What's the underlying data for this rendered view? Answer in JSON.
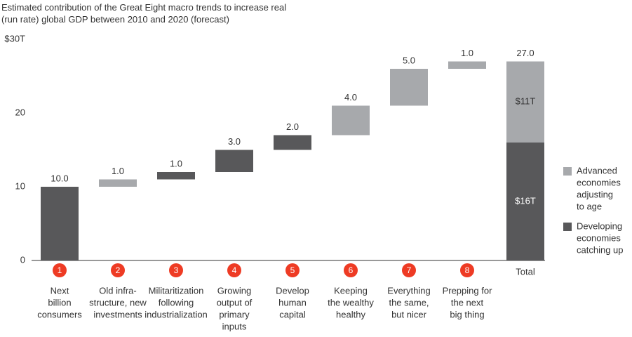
{
  "chart_data": {
    "type": "waterfall",
    "title": "Estimated contribution of the Great Eight macro trends to increase real (run rate) global GDP between 2010 and 2020 (forecast)",
    "markers": [
      "1",
      "2",
      "3",
      "4",
      "5",
      "6",
      "7",
      "8"
    ],
    "marker_color": "#ee3b24",
    "categories": [
      [
        "Next",
        "billion",
        "consumers"
      ],
      [
        "Old infra-",
        "structure, new",
        "investments"
      ],
      [
        "Militaritization",
        "following",
        "industrialization"
      ],
      [
        "Growing",
        "output of",
        "primary",
        "inputs"
      ],
      [
        "Develop",
        "human",
        "capital"
      ],
      [
        "Keeping",
        "the wealthy",
        "healthy"
      ],
      [
        "Everything",
        "the same,",
        "but nicer"
      ],
      [
        "Prepping for",
        "the next",
        "big thing"
      ],
      [
        "Total"
      ]
    ],
    "values": [
      10,
      1,
      1,
      3,
      2,
      4,
      5,
      1,
      27
    ],
    "value_labels": [
      "10.0",
      "1.0",
      "1.0",
      "3.0",
      "2.0",
      "4.0",
      "5.0",
      "1.0",
      "27.0"
    ],
    "colors": [
      "#58585a",
      "#a7a9ac",
      "#58585a",
      "#58585a",
      "#58585a",
      "#a7a9ac",
      "#a7a9ac",
      "#a7a9ac"
    ],
    "total_segments": {
      "values": [
        16,
        11
      ],
      "value_labels": [
        "$16T",
        "$11T"
      ]
    },
    "series": [
      {
        "name": [
          "Developing",
          "economies",
          "catching up"
        ],
        "color": "#58585a"
      },
      {
        "name": [
          "Advanced",
          "economies",
          "adjusting",
          "to age"
        ],
        "color": "#a7a9ac"
      }
    ],
    "ylim": [
      0,
      30
    ],
    "yticks": [
      0,
      10,
      20,
      {
        "value": 30,
        "label": "$30T"
      }
    ]
  }
}
